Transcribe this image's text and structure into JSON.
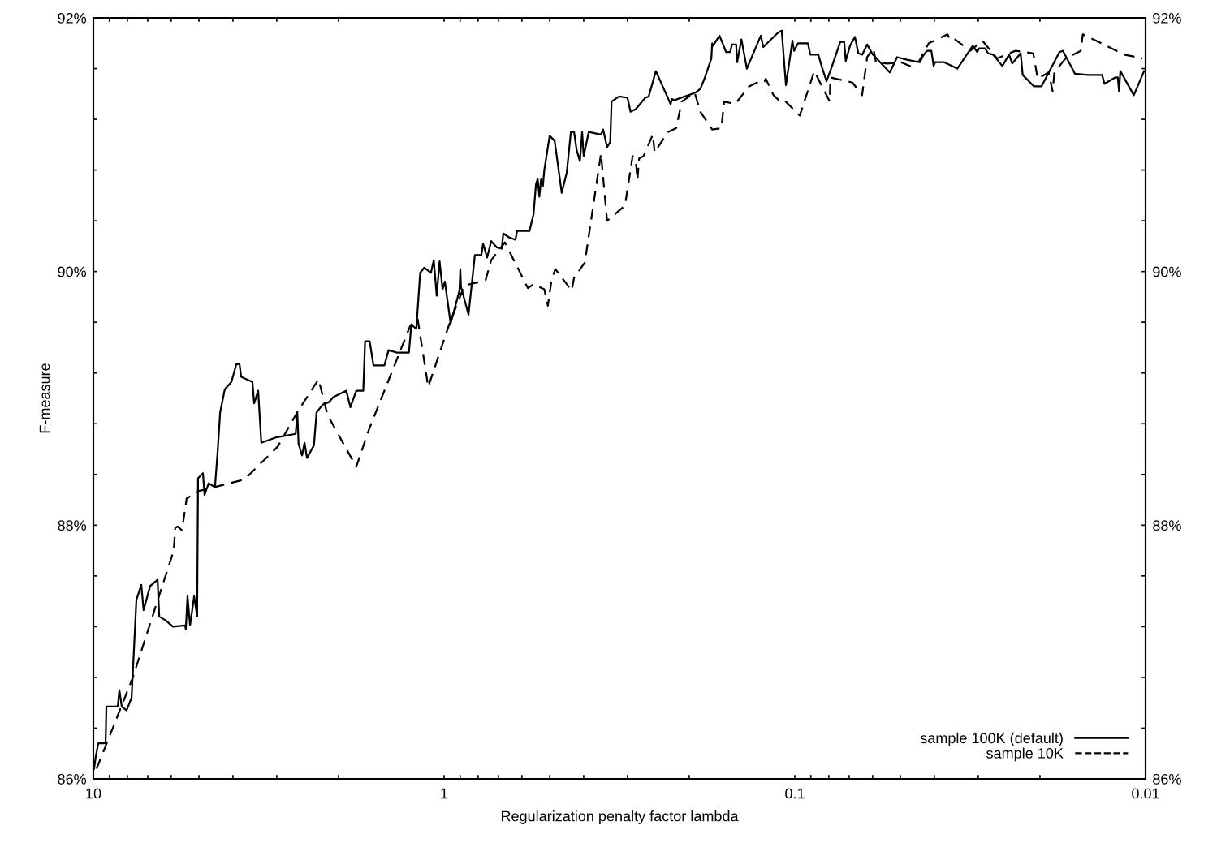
{
  "chart_data": {
    "type": "line",
    "xlabel": "Regularization penalty factor lambda",
    "ylabel": "F-measure",
    "log": "x",
    "grid": false,
    "legend": "bottom right",
    "marker": "none",
    "xlim": [
      10,
      0.01
    ],
    "xticks": [
      10,
      {
        "value": 9,
        "label": null
      },
      {
        "value": 8,
        "label": null
      },
      {
        "value": 7,
        "label": null
      },
      {
        "value": 6,
        "label": null
      },
      {
        "value": 5,
        "label": null
      },
      {
        "value": 4,
        "label": null
      },
      {
        "value": 3,
        "label": null
      },
      {
        "value": 2,
        "label": null
      },
      1,
      {
        "value": 0.9,
        "label": null
      },
      {
        "value": 0.8,
        "label": null
      },
      {
        "value": 0.7,
        "label": null
      },
      {
        "value": 0.6,
        "label": null
      },
      {
        "value": 0.5,
        "label": null
      },
      {
        "value": 0.4,
        "label": null
      },
      {
        "value": 0.3,
        "label": null
      },
      {
        "value": 0.2,
        "label": null
      },
      0.1,
      {
        "value": 0.09,
        "label": null
      },
      {
        "value": 0.08,
        "label": null
      },
      {
        "value": 0.07,
        "label": null
      },
      {
        "value": 0.06,
        "label": null
      },
      {
        "value": 0.05,
        "label": null
      },
      {
        "value": 0.04,
        "label": null
      },
      {
        "value": 0.03,
        "label": null
      },
      {
        "value": 0.02,
        "label": null
      },
      0.01
    ],
    "ylim": [
      86,
      92
    ],
    "yticks": [
      {
        "value": 86,
        "label": "86%"
      },
      {
        "value": 86.4,
        "label": null
      },
      {
        "value": 86.8,
        "label": null
      },
      {
        "value": 87.2,
        "label": null
      },
      {
        "value": 87.6,
        "label": null
      },
      {
        "value": 88,
        "label": "88%"
      },
      {
        "value": 88.4,
        "label": null
      },
      {
        "value": 88.8,
        "label": null
      },
      {
        "value": 89.2,
        "label": null
      },
      {
        "value": 89.6,
        "label": null
      },
      {
        "value": 90,
        "label": "90%"
      },
      {
        "value": 90.4,
        "label": null
      },
      {
        "value": 90.8,
        "label": null
      },
      {
        "value": 91.2,
        "label": null
      },
      {
        "value": 91.6,
        "label": null
      },
      {
        "value": 92,
        "label": "92%"
      }
    ],
    "y2lim": [
      86,
      92
    ],
    "y2ticks": [
      {
        "value": 86,
        "label": "86%"
      },
      {
        "value": 86.4,
        "label": null
      },
      {
        "value": 86.8,
        "label": null
      },
      {
        "value": 87.2,
        "label": null
      },
      {
        "value": 87.6,
        "label": null
      },
      {
        "value": 88,
        "label": "88%"
      },
      {
        "value": 88.4,
        "label": null
      },
      {
        "value": 88.8,
        "label": null
      },
      {
        "value": 89.2,
        "label": null
      },
      {
        "value": 89.6,
        "label": null
      },
      {
        "value": 90,
        "label": "90%"
      },
      {
        "value": 90.4,
        "label": null
      },
      {
        "value": 90.8,
        "label": null
      },
      {
        "value": 91.2,
        "label": null
      },
      {
        "value": 91.6,
        "label": null
      },
      {
        "value": 92,
        "label": "92%"
      }
    ],
    "series": [
      {
        "name": "sample 100K (default)",
        "color": "#000000",
        "line_style": "solid",
        "x": [
          9.95,
          9.84,
          9.68,
          9.23,
          9.18,
          8.52,
          8.43,
          8.3,
          8.04,
          7.78,
          7.54,
          7.3,
          7.19,
          6.89,
          6.56,
          6.49,
          6.22,
          5.93,
          5.48,
          5.45,
          5.39,
          5.3,
          5.16,
          5.06,
          5.03,
          4.87,
          4.82,
          4.69,
          4.5,
          4.42,
          4.35,
          4.22,
          4.04,
          3.91,
          3.83,
          3.79,
          3.52,
          3.48,
          3.39,
          3.32,
          3.03,
          2.65,
          2.62,
          2.6,
          2.54,
          2.5,
          2.46,
          2.35,
          2.31,
          2.22,
          2.13,
          2.07,
          1.9,
          1.85,
          1.78,
          1.7,
          1.68,
          1.63,
          1.59,
          1.48,
          1.44,
          1.36,
          1.26,
          1.24,
          1.2,
          1.17,
          1.14,
          1.09,
          1.07,
          1.05,
          1.03,
          1.01,
          0.995,
          0.958,
          0.904,
          0.899,
          0.895,
          0.852,
          0.817,
          0.783,
          0.774,
          0.754,
          0.734,
          0.707,
          0.685,
          0.678,
          0.653,
          0.626,
          0.619,
          0.571,
          0.556,
          0.547,
          0.541,
          0.535,
          0.529,
          0.523,
          0.518,
          0.5,
          0.484,
          0.479,
          0.462,
          0.447,
          0.435,
          0.426,
          0.419,
          0.41,
          0.404,
          0.4,
          0.387,
          0.357,
          0.352,
          0.343,
          0.336,
          0.333,
          0.317,
          0.3,
          0.294,
          0.284,
          0.267,
          0.261,
          0.249,
          0.226,
          0.224,
          0.221,
          0.192,
          0.186,
          0.181,
          0.173,
          0.172,
          0.171,
          0.164,
          0.157,
          0.153,
          0.151,
          0.147,
          0.146,
          0.142,
          0.137,
          0.125,
          0.123,
          0.112,
          0.109,
          0.106,
          0.1016,
          0.1005,
          0.0979,
          0.0918,
          0.0903,
          0.0857,
          0.0839,
          0.0812,
          0.0783,
          0.0742,
          0.0723,
          0.0716,
          0.0696,
          0.0674,
          0.0659,
          0.0642,
          0.0622,
          0.0599,
          0.0536,
          0.0511,
          0.0479,
          0.044,
          0.0431,
          0.042,
          0.0408,
          0.0402,
          0.0398,
          0.0375,
          0.0344,
          0.0311,
          0.0302,
          0.0298,
          0.0287,
          0.0281,
          0.0272,
          0.0256,
          0.0245,
          0.024,
          0.0227,
          0.0224,
          0.0208,
          0.0198,
          0.0176,
          0.0172,
          0.0159,
          0.0146,
          0.0133,
          0.0131,
          0.0122,
          0.012,
          0.0119,
          0.0118,
          0.0108,
          0.0101
        ],
        "values": [
          86.08,
          86.18,
          86.28,
          86.28,
          86.57,
          86.57,
          86.7,
          86.57,
          86.54,
          86.64,
          87.41,
          87.53,
          87.33,
          87.52,
          87.57,
          87.28,
          87.25,
          87.2,
          87.21,
          87.18,
          87.44,
          87.21,
          87.44,
          87.28,
          88.37,
          88.41,
          88.24,
          88.33,
          88.3,
          88.59,
          88.89,
          89.07,
          89.13,
          89.27,
          89.27,
          89.17,
          89.13,
          88.96,
          89.06,
          88.65,
          88.69,
          88.72,
          88.88,
          88.64,
          88.55,
          88.65,
          88.53,
          88.63,
          88.89,
          88.95,
          88.97,
          89.01,
          89.06,
          88.93,
          89.06,
          89.06,
          89.45,
          89.45,
          89.26,
          89.26,
          89.38,
          89.36,
          89.36,
          89.58,
          89.55,
          89.99,
          90.03,
          89.99,
          90.09,
          89.81,
          90.08,
          89.86,
          89.92,
          89.59,
          89.85,
          90.02,
          89.88,
          89.66,
          90.13,
          90.13,
          90.22,
          90.11,
          90.24,
          90.19,
          90.18,
          90.3,
          90.27,
          90.25,
          90.32,
          90.32,
          90.45,
          90.69,
          90.73,
          90.59,
          90.73,
          90.67,
          90.8,
          91.07,
          91.03,
          90.94,
          90.62,
          90.78,
          91.1,
          91.1,
          90.96,
          90.87,
          91.1,
          90.91,
          91.1,
          91.08,
          91.12,
          90.98,
          91.02,
          91.34,
          91.38,
          91.37,
          91.26,
          91.28,
          91.37,
          91.38,
          91.58,
          91.32,
          91.36,
          91.35,
          91.41,
          91.44,
          91.52,
          91.68,
          91.8,
          91.78,
          91.86,
          91.73,
          91.73,
          91.79,
          91.79,
          91.65,
          91.83,
          91.6,
          91.86,
          91.77,
          91.88,
          91.9,
          91.47,
          91.82,
          91.74,
          91.8,
          91.8,
          91.71,
          91.71,
          91.62,
          91.5,
          91.62,
          91.81,
          91.81,
          91.66,
          91.78,
          91.85,
          91.72,
          91.71,
          91.79,
          91.71,
          91.57,
          91.69,
          91.67,
          91.65,
          91.7,
          91.74,
          91.74,
          91.62,
          91.65,
          91.65,
          91.6,
          91.78,
          91.73,
          91.76,
          91.76,
          91.72,
          91.71,
          91.62,
          91.71,
          91.64,
          91.72,
          91.55,
          91.46,
          91.46,
          91.73,
          91.74,
          91.56,
          91.55,
          91.55,
          91.48,
          91.53,
          91.53,
          91.42,
          91.58,
          91.39,
          91.58
        ]
      },
      {
        "name": "sample 10K",
        "color": "#000000",
        "line_style": "dashed",
        "x": [
          9.79,
          7.74,
          5.9,
          5.84,
          5.75,
          5.59,
          5.42,
          5.0,
          3.71,
          2.98,
          2.61,
          2.28,
          2.15,
          1.78,
          1.64,
          1.25,
          1.19,
          1.11,
          0.968,
          0.875,
          0.762,
          0.734,
          0.671,
          0.577,
          0.556,
          0.518,
          0.506,
          0.494,
          0.482,
          0.433,
          0.426,
          0.397,
          0.357,
          0.343,
          0.305,
          0.29,
          0.284,
          0.281,
          0.278,
          0.27,
          0.254,
          0.251,
          0.23,
          0.218,
          0.21,
          0.193,
          0.186,
          0.172,
          0.162,
          0.159,
          0.148,
          0.135,
          0.124,
          0.122,
          0.121,
          0.115,
          0.111,
          0.108,
          0.0968,
          0.088,
          0.0795,
          0.0792,
          0.0685,
          0.0643,
          0.0622,
          0.0597,
          0.0587,
          0.0545,
          0.0498,
          0.0469,
          0.0442,
          0.0415,
          0.0367,
          0.0361,
          0.0353,
          0.0316,
          0.0292,
          0.0265,
          0.0235,
          0.0209,
          0.0203,
          0.0189,
          0.0184,
          0.0182,
          0.0169,
          0.0153,
          0.0151,
          0.0136,
          0.0115,
          0.0102
        ],
        "values": [
          86.08,
          86.79,
          87.8,
          87.98,
          87.99,
          87.96,
          88.21,
          88.27,
          88.36,
          88.62,
          88.9,
          89.15,
          88.87,
          88.46,
          88.75,
          89.57,
          89.63,
          89.09,
          89.58,
          89.89,
          89.93,
          90.09,
          90.23,
          89.87,
          89.9,
          89.86,
          89.73,
          89.93,
          90.02,
          89.85,
          89.95,
          90.07,
          90.93,
          90.4,
          90.52,
          90.91,
          90.87,
          90.72,
          90.89,
          90.91,
          91.08,
          90.94,
          91.1,
          91.13,
          91.34,
          91.41,
          91.26,
          91.12,
          91.13,
          91.34,
          91.32,
          91.46,
          91.51,
          91.5,
          91.52,
          91.39,
          91.35,
          91.36,
          91.23,
          91.58,
          91.34,
          91.53,
          91.49,
          91.39,
          91.69,
          91.76,
          91.65,
          91.64,
          91.65,
          91.62,
          91.66,
          91.8,
          91.87,
          91.83,
          91.84,
          91.74,
          91.82,
          91.68,
          91.74,
          91.72,
          91.52,
          91.57,
          91.42,
          91.57,
          91.68,
          91.74,
          91.87,
          91.81,
          91.71,
          91.68
        ]
      }
    ]
  }
}
